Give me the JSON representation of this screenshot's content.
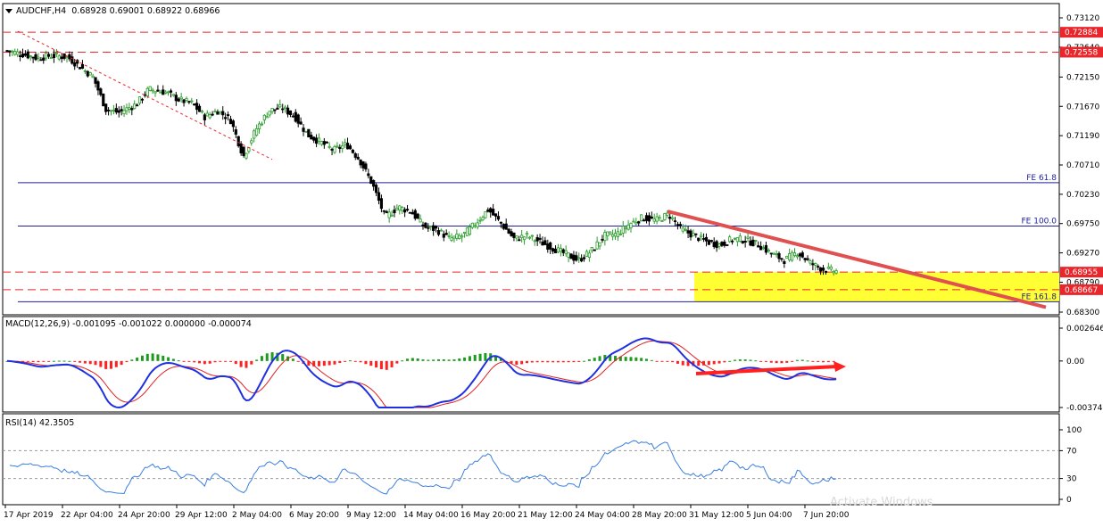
{
  "header": {
    "symbol_timeframe": "AUDCHF,H4",
    "ohlc": "0.68928 0.69001 0.68922 0.68966"
  },
  "price_axis": {
    "ticks": [
      "0.73120",
      "0.72640",
      "0.72150",
      "0.71670",
      "0.71190",
      "0.70710",
      "0.70230",
      "0.69750",
      "0.69270",
      "0.68790",
      "0.68300"
    ],
    "values": [
      0.7312,
      0.7264,
      0.7215,
      0.7167,
      0.7119,
      0.7071,
      0.7023,
      0.6975,
      0.6927,
      0.6879,
      0.683
    ],
    "range": [
      0.683,
      0.7312
    ],
    "highlight_labels": [
      {
        "text": "0.72884",
        "value": 0.72884,
        "color": "#e8262b"
      },
      {
        "text": "0.72558",
        "value": 0.72558,
        "color": "#e8262b"
      },
      {
        "text": "0.68955",
        "value": 0.68955,
        "color": "#e8262b"
      },
      {
        "text": "0.68667",
        "value": 0.68667,
        "color": "#e8262b"
      }
    ]
  },
  "levels": {
    "fe_61_8": {
      "label": "FE 61.8",
      "value": 0.7042
    },
    "fe_100": {
      "label": "FE 100.0",
      "value": 0.6971
    },
    "fe_161_8": {
      "label": "FE 161.8",
      "value": 0.6847
    }
  },
  "macd": {
    "title": "MACD(12,26,9) -0.001095 -0.001022 0.000000 -0.000074",
    "ticks": [
      "0.002646",
      "0.00",
      "-0.003747"
    ],
    "range": [
      -0.003747,
      0.002646
    ]
  },
  "rsi": {
    "title": "RSI(14) 42.3505",
    "ticks": [
      "100",
      "70",
      "30",
      "0"
    ],
    "levels": [
      70,
      30
    ]
  },
  "time_axis": {
    "labels": [
      "17 Apr 2019",
      "22 Apr 04:00",
      "24 Apr 20:00",
      "29 Apr 12:00",
      "2 May 04:00",
      "6 May 20:00",
      "9 May 12:00",
      "14 May 04:00",
      "16 May 20:00",
      "21 May 12:00",
      "24 May 04:00",
      "28 May 20:00",
      "31 May 12:00",
      "5 Jun 04:00",
      "7 Jun 20:00"
    ]
  },
  "colors": {
    "bull_candle": "#2a9d2a",
    "bear_candle": "#000000",
    "level_line": "#e8262b",
    "fe_line": "#2020a0",
    "trendline": "#e05050",
    "zone": "#ffff33",
    "macd_pos": "#1e9a1e",
    "macd_neg": "#ff2020",
    "macd_line": "#2030e0",
    "signal_line": "#e02020",
    "rsi_line": "#3a7fe0"
  },
  "watermark": "Activate Windows",
  "chart_data": {
    "type": "candlestick",
    "title": "AUDCHF,H4",
    "approx_close_path": [
      [
        0,
        0.7258
      ],
      [
        8,
        0.7252
      ],
      [
        14,
        0.7246
      ],
      [
        20,
        0.725
      ],
      [
        28,
        0.7248
      ],
      [
        34,
        0.7232
      ],
      [
        40,
        0.7215
      ],
      [
        46,
        0.7162
      ],
      [
        52,
        0.7157
      ],
      [
        60,
        0.717
      ],
      [
        66,
        0.7195
      ],
      [
        74,
        0.719
      ],
      [
        80,
        0.7178
      ],
      [
        86,
        0.7172
      ],
      [
        92,
        0.715
      ],
      [
        98,
        0.716
      ],
      [
        104,
        0.7145
      ],
      [
        110,
        0.7085
      ],
      [
        116,
        0.713
      ],
      [
        122,
        0.716
      ],
      [
        128,
        0.7165
      ],
      [
        134,
        0.715
      ],
      [
        140,
        0.712
      ],
      [
        146,
        0.7108
      ],
      [
        152,
        0.7095
      ],
      [
        158,
        0.7105
      ],
      [
        164,
        0.708
      ],
      [
        170,
        0.704
      ],
      [
        176,
        0.6985
      ],
      [
        182,
        0.7002
      ],
      [
        188,
        0.6995
      ],
      [
        194,
        0.697
      ],
      [
        200,
        0.6965
      ],
      [
        206,
        0.695
      ],
      [
        212,
        0.6955
      ],
      [
        218,
        0.6975
      ],
      [
        224,
        0.6998
      ],
      [
        230,
        0.6975
      ],
      [
        236,
        0.695
      ],
      [
        242,
        0.6955
      ],
      [
        248,
        0.6945
      ],
      [
        254,
        0.6935
      ],
      [
        260,
        0.6925
      ],
      [
        266,
        0.6915
      ],
      [
        272,
        0.693
      ],
      [
        278,
        0.6955
      ],
      [
        284,
        0.6958
      ],
      [
        290,
        0.6975
      ],
      [
        296,
        0.6985
      ],
      [
        302,
        0.698
      ],
      [
        308,
        0.699
      ],
      [
        314,
        0.6965
      ],
      [
        320,
        0.6955
      ],
      [
        326,
        0.6945
      ],
      [
        332,
        0.694
      ],
      [
        338,
        0.695
      ],
      [
        344,
        0.6948
      ],
      [
        350,
        0.694
      ],
      [
        356,
        0.6925
      ],
      [
        362,
        0.6915
      ],
      [
        368,
        0.6928
      ],
      [
        374,
        0.691
      ],
      [
        380,
        0.69
      ],
      [
        386,
        0.6897
      ]
    ]
  }
}
